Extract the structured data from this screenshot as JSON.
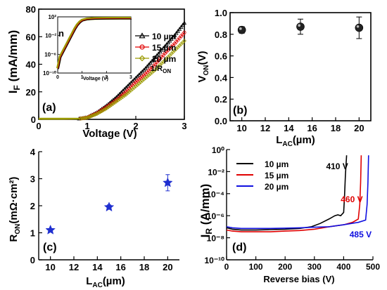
{
  "chart_data": [
    {
      "id": "a",
      "type": "line",
      "panel_label": "(a)",
      "xlabel": "Voltage (V)",
      "ylabel": "I",
      "ylabel_sub": "F",
      "ylabel_rest": " (mA/mm)",
      "xlim": [
        0,
        3
      ],
      "ylim": [
        0,
        80
      ],
      "xticks": [
        "0",
        "1",
        "2",
        "3"
      ],
      "yticks": [
        "0",
        "20",
        "40",
        "60",
        "80"
      ],
      "annotation": "1/R",
      "annotation_sub": "ON",
      "legend_position": "top-right",
      "series": [
        {
          "name": "10 µm",
          "color": "#000000",
          "marker": "triangle",
          "x": [
            0,
            0.5,
            0.8,
            1.0,
            1.2,
            1.4,
            1.6,
            1.8,
            2.0,
            2.2,
            2.4,
            2.6,
            2.8,
            3.0
          ],
          "y": [
            0,
            0,
            0.3,
            1.5,
            5,
            10,
            16,
            23,
            30,
            37,
            45,
            53,
            61,
            70
          ]
        },
        {
          "name": "15 µm",
          "color": "#e00000",
          "marker": "circle",
          "x": [
            0,
            0.5,
            0.8,
            1.0,
            1.2,
            1.4,
            1.6,
            1.8,
            2.0,
            2.2,
            2.4,
            2.6,
            2.8,
            3.0
          ],
          "y": [
            0,
            0,
            0.3,
            1.3,
            4.5,
            9,
            14,
            20,
            27,
            33,
            40,
            48,
            55,
            63
          ]
        },
        {
          "name": "20 µm",
          "color": "#9a9a00",
          "marker": "diamond",
          "x": [
            0,
            0.5,
            0.8,
            1.0,
            1.2,
            1.4,
            1.6,
            1.8,
            2.0,
            2.2,
            2.4,
            2.6,
            2.8,
            3.0
          ],
          "y": [
            0,
            0,
            0.3,
            1.2,
            4,
            8,
            13,
            18,
            24,
            30,
            36,
            43,
            50,
            57
          ]
        }
      ],
      "inset": {
        "type": "line",
        "scale": "log",
        "xlabel": "Voltage (V)",
        "label": "n",
        "xlim": [
          0,
          3
        ],
        "ylim": [
          1e-10,
          100.0
        ],
        "xticks": [
          "0",
          "1",
          "2",
          "3"
        ],
        "yticks": [
          "10²",
          "10⁻²",
          "10⁻⁶",
          "10⁻¹⁰"
        ],
        "x": [
          0,
          0.1,
          0.2,
          0.3,
          0.4,
          0.5,
          0.6,
          0.7,
          0.8,
          0.9,
          1.0,
          1.2,
          1.5,
          2.0,
          2.5,
          3.0
        ],
        "y": [
          1e-09,
          3e-07,
          3e-06,
          3e-05,
          0.0003,
          0.003,
          0.03,
          0.3,
          2,
          8,
          20,
          35,
          45,
          50,
          52,
          52
        ]
      }
    },
    {
      "id": "b",
      "type": "scatter",
      "panel_label": "(b)",
      "xlabel": "L",
      "xlabel_sub": "AC",
      "xlabel_rest": "(µm)",
      "ylabel": "V",
      "ylabel_sub": "ON",
      "ylabel_rest": "(V)",
      "xlim": [
        9,
        21
      ],
      "ylim": [
        0,
        1.0
      ],
      "xticks": [
        "10",
        "12",
        "14",
        "16",
        "18",
        "20"
      ],
      "yticks": [
        "0.0",
        "0.2",
        "0.4",
        "0.6",
        "0.8",
        "1.0"
      ],
      "marker": "sphere",
      "points": [
        {
          "x": 10,
          "y": 0.84,
          "err": 0.03
        },
        {
          "x": 15,
          "y": 0.87,
          "err": 0.07
        },
        {
          "x": 20,
          "y": 0.86,
          "err": 0.1
        }
      ]
    },
    {
      "id": "c",
      "type": "scatter",
      "panel_label": "(c)",
      "xlabel": "L",
      "xlabel_sub": "AC",
      "xlabel_rest": "(µm)",
      "ylabel": "R",
      "ylabel_sub": "ON",
      "ylabel_rest": "(mΩ·cm²)",
      "xlim": [
        9,
        21
      ],
      "ylim": [
        0,
        4
      ],
      "xticks": [
        "10",
        "12",
        "14",
        "16",
        "18",
        "20"
      ],
      "yticks": [
        "0",
        "1",
        "2",
        "3",
        "4"
      ],
      "marker": "star",
      "color": "#1f2fd0",
      "points": [
        {
          "x": 10,
          "y": 1.1,
          "err": 0.05
        },
        {
          "x": 15,
          "y": 1.95,
          "err": 0.08
        },
        {
          "x": 20,
          "y": 2.85,
          "err": 0.3
        }
      ]
    },
    {
      "id": "d",
      "type": "line",
      "scale": "log",
      "panel_label": "(d)",
      "xlabel": "Reverse bias (V)",
      "ylabel": "I",
      "ylabel_sub": "R",
      "ylabel_rest": " (A/mm)",
      "xlim": [
        0,
        500
      ],
      "ylim": [
        1e-10,
        1
      ],
      "xticks": [
        "0",
        "100",
        "200",
        "300",
        "400",
        "500"
      ],
      "yticks": [
        "10⁰",
        "10⁻²",
        "10⁻⁴",
        "10⁻⁶",
        "10⁻⁸",
        "10⁻¹⁰"
      ],
      "legend_position": "top-left",
      "annotations": [
        {
          "text": "410 V",
          "color": "#000000",
          "x": 340,
          "y": 0.03
        },
        {
          "text": "460 V",
          "color": "#e00000",
          "x": 390,
          "y": 3e-05
        },
        {
          "text": "485 V",
          "color": "#1010e0",
          "x": 420,
          "y": 2e-08
        }
      ],
      "series": [
        {
          "name": "10 µm",
          "color": "#000000",
          "x": [
            0,
            20,
            50,
            100,
            150,
            200,
            250,
            290,
            320,
            350,
            370,
            380,
            390,
            400,
            403,
            406,
            410
          ],
          "y": [
            8e-08,
            6e-08,
            5e-08,
            5e-08,
            5.5e-08,
            6e-08,
            7e-08,
            1e-07,
            2e-07,
            5e-07,
            1e-06,
            1.2e-06,
            1e-06,
            2e-06,
            5e-05,
            0.005,
            0.3
          ]
        },
        {
          "name": "15 µm",
          "color": "#e00000",
          "x": [
            0,
            20,
            50,
            100,
            150,
            200,
            250,
            300,
            350,
            400,
            430,
            450,
            455,
            458,
            460
          ],
          "y": [
            5e-08,
            4e-08,
            3.5e-08,
            3.5e-08,
            3.5e-08,
            4e-08,
            4.5e-08,
            6e-08,
            1e-07,
            1.5e-07,
            2.5e-07,
            5e-07,
            1e-05,
            0.001,
            0.3
          ]
        },
        {
          "name": "20 µm",
          "color": "#1010e0",
          "x": [
            0,
            20,
            50,
            100,
            150,
            200,
            250,
            300,
            350,
            400,
            450,
            475,
            480,
            483,
            485
          ],
          "y": [
            1e-07,
            8e-08,
            7e-08,
            7e-08,
            7e-08,
            7.5e-08,
            8e-08,
            9e-08,
            1e-07,
            1.5e-07,
            2.5e-07,
            4e-07,
            1e-05,
            0.001,
            0.3
          ]
        }
      ]
    }
  ]
}
